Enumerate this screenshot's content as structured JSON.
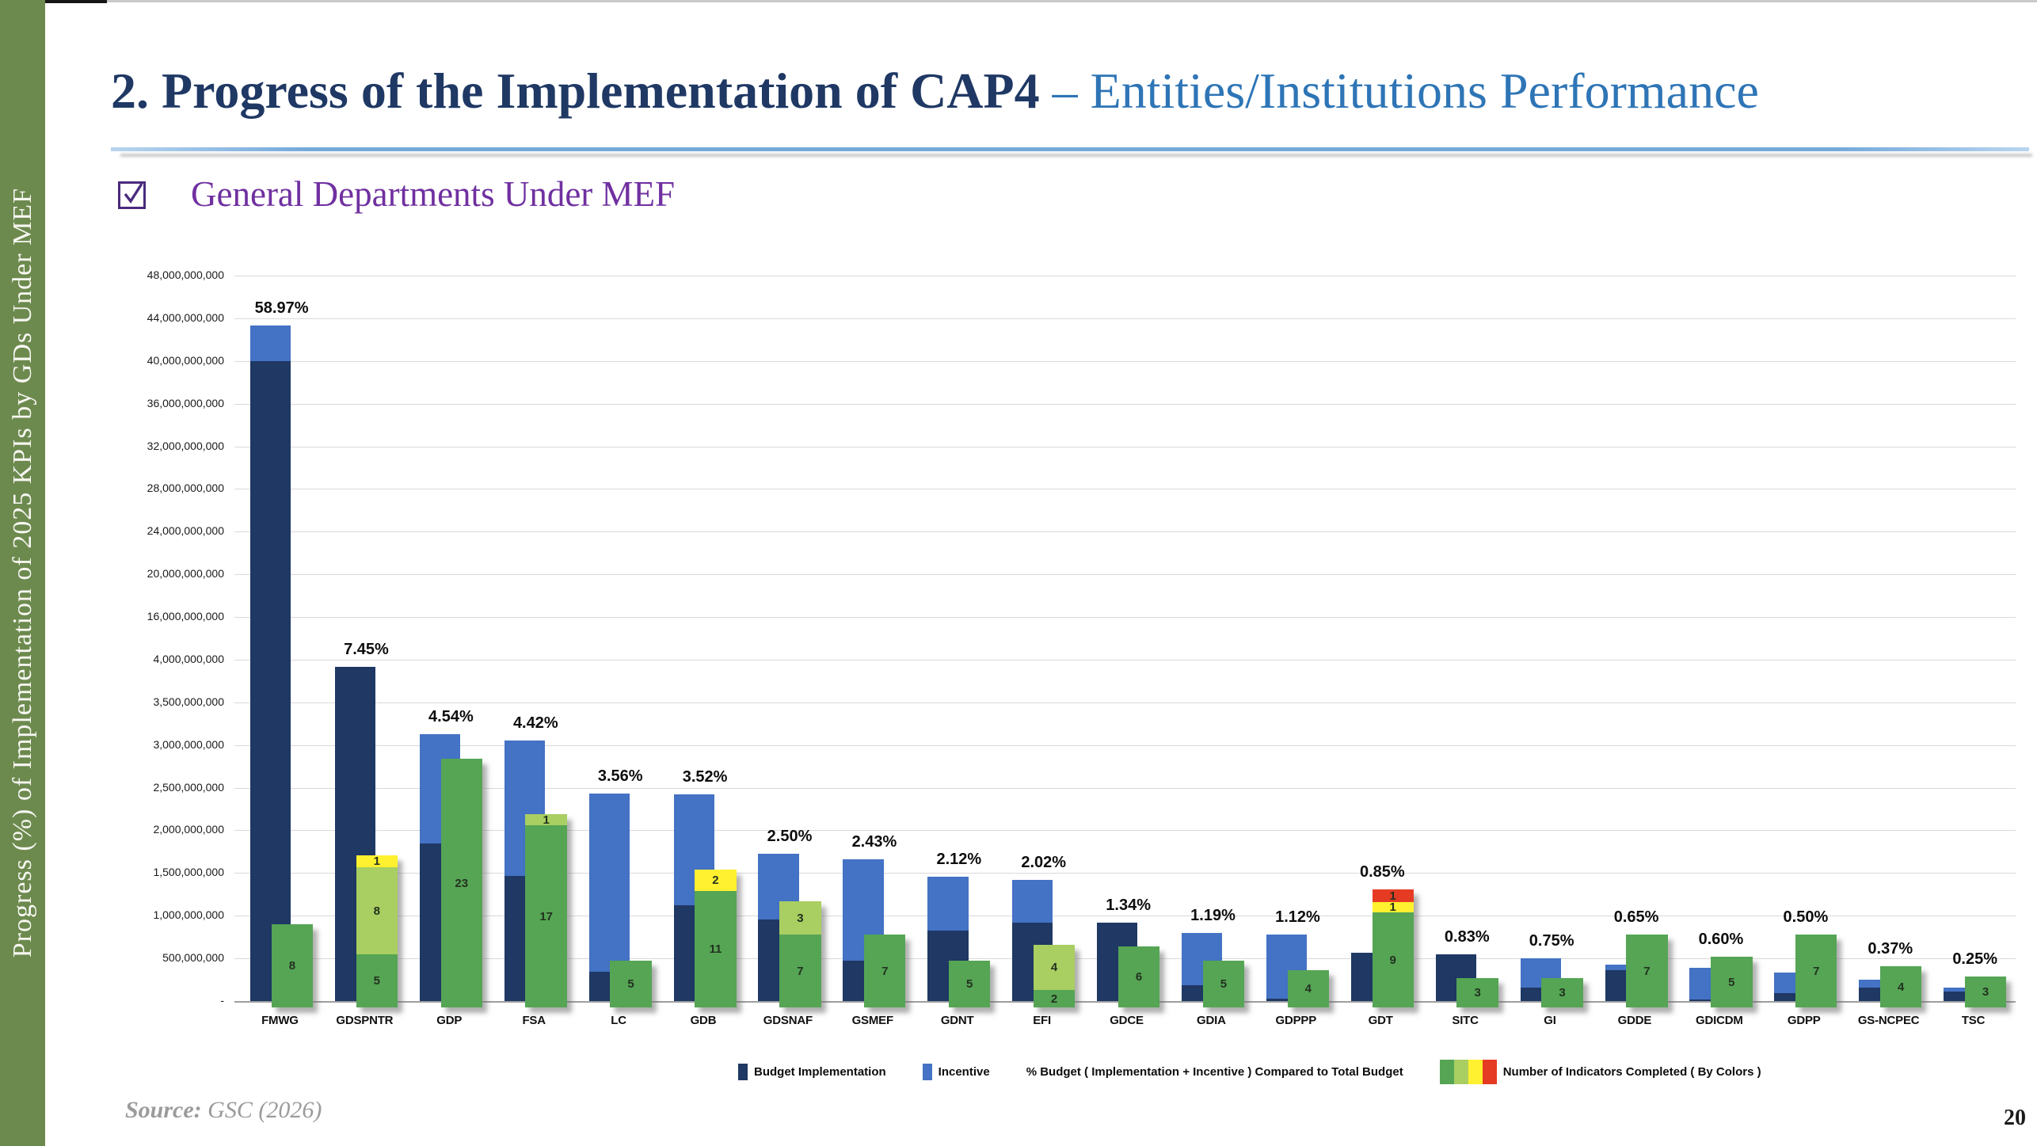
{
  "sidebar": {
    "text": "Progress (%) of Implementation of 2025 KPIs by GDs Under MEF"
  },
  "header": {
    "title_main": "2. Progress of the Implementation of CAP4 ",
    "title_accent": "– Entities/Institutions Performance"
  },
  "section": {
    "label": "General Departments Under MEF"
  },
  "footer": {
    "source_prefix": "Source:",
    "source_value": " GSC (2026)",
    "page_number": "20"
  },
  "chart_data": {
    "type": "bar",
    "title": "",
    "xlabel": "",
    "ylabel": "",
    "y_axis": {
      "broken": true,
      "tick_labels": [
        "48,000,000,000",
        "44,000,000,000",
        "40,000,000,000",
        "36,000,000,000",
        "32,000,000,000",
        "28,000,000,000",
        "24,000,000,000",
        "20,000,000,000",
        "16,000,000,000",
        "4,000,000,000",
        "3,500,000,000",
        "3,000,000,000",
        "2,500,000,000",
        "2,000,000,000",
        "1,500,000,000",
        "1,000,000,000",
        "500,000,000",
        "-"
      ],
      "tick_values_billions": [
        48,
        44,
        40,
        36,
        32,
        28,
        24,
        20,
        16,
        4,
        3.5,
        3,
        2.5,
        2,
        1.5,
        1,
        0.5,
        0
      ]
    },
    "colors": {
      "implementation": "#1F3864",
      "incentive": "#4472C4",
      "green": "#55A555",
      "light_green": "#A9CE61",
      "yellow": "#FFF12F",
      "red": "#E63B23"
    },
    "legend": [
      {
        "kind": "swatch",
        "color_key": "implementation",
        "label": "Budget Implementation"
      },
      {
        "kind": "swatch",
        "color_key": "incentive",
        "label": "Incentive"
      },
      {
        "kind": "text",
        "label": "% Budget ( Implementation + Incentive ) Compared to Total Budget"
      },
      {
        "kind": "multi_swatch",
        "color_keys": [
          "green",
          "light_green",
          "yellow",
          "red"
        ],
        "label": "Number of Indicators Completed ( By Colors )"
      }
    ],
    "categories": [
      {
        "name": "FMWG",
        "pct_label": "58.97%",
        "implementation_b": 40.0,
        "incentive_b": 3.35,
        "indicators": [
          {
            "color_key": "green",
            "count": 8,
            "height_b": 0.97
          }
        ]
      },
      {
        "name": "GDSPNTR",
        "pct_label": "7.45%",
        "implementation_b": 3.92,
        "incentive_b": 0,
        "indicators": [
          {
            "color_key": "green",
            "count": 5,
            "height_b": 0.62
          },
          {
            "color_key": "light_green",
            "count": 8,
            "height_b": 1.02
          },
          {
            "color_key": "yellow",
            "count": 1,
            "height_b": 0.14
          }
        ]
      },
      {
        "name": "GDP",
        "pct_label": "4.54%",
        "implementation_b": 1.85,
        "incentive_b": 1.28,
        "indicators": [
          {
            "color_key": "green",
            "count": 23,
            "height_b": 2.91
          }
        ]
      },
      {
        "name": "FSA",
        "pct_label": "4.42%",
        "implementation_b": 1.47,
        "incentive_b": 1.58,
        "indicators": [
          {
            "color_key": "green",
            "count": 17,
            "height_b": 2.13
          },
          {
            "color_key": "light_green",
            "count": 1,
            "height_b": 0.13
          }
        ]
      },
      {
        "name": "LC",
        "pct_label": "3.56%",
        "implementation_b": 0.34,
        "incentive_b": 2.09,
        "indicators": [
          {
            "color_key": "green",
            "count": 5,
            "height_b": 0.55
          }
        ]
      },
      {
        "name": "GDB",
        "pct_label": "3.52%",
        "implementation_b": 1.12,
        "incentive_b": 1.3,
        "indicators": [
          {
            "color_key": "green",
            "count": 11,
            "height_b": 1.36
          },
          {
            "color_key": "yellow",
            "count": 2,
            "height_b": 0.25
          }
        ]
      },
      {
        "name": "GDSNAF",
        "pct_label": "2.50%",
        "implementation_b": 0.96,
        "incentive_b": 0.77,
        "indicators": [
          {
            "color_key": "green",
            "count": 7,
            "height_b": 0.85
          },
          {
            "color_key": "light_green",
            "count": 3,
            "height_b": 0.39
          }
        ]
      },
      {
        "name": "GSMEF",
        "pct_label": "2.43%",
        "implementation_b": 0.47,
        "incentive_b": 1.19,
        "indicators": [
          {
            "color_key": "green",
            "count": 7,
            "height_b": 0.85
          }
        ]
      },
      {
        "name": "GDNT",
        "pct_label": "2.12%",
        "implementation_b": 0.83,
        "incentive_b": 0.63,
        "indicators": [
          {
            "color_key": "green",
            "count": 5,
            "height_b": 0.55
          }
        ]
      },
      {
        "name": "EFI",
        "pct_label": "2.02%",
        "implementation_b": 0.92,
        "incentive_b": 0.5,
        "indicators": [
          {
            "color_key": "green",
            "count": 2,
            "height_b": 0.2
          },
          {
            "color_key": "light_green",
            "count": 4,
            "height_b": 0.53
          }
        ]
      },
      {
        "name": "GDCE",
        "pct_label": "1.34%",
        "implementation_b": 0.92,
        "incentive_b": 0,
        "indicators": [
          {
            "color_key": "green",
            "count": 6,
            "height_b": 0.71
          }
        ]
      },
      {
        "name": "GDIA",
        "pct_label": "1.19%",
        "implementation_b": 0.19,
        "incentive_b": 0.61,
        "indicators": [
          {
            "color_key": "green",
            "count": 5,
            "height_b": 0.55
          }
        ]
      },
      {
        "name": "GDPPP",
        "pct_label": "1.12%",
        "implementation_b": 0.03,
        "incentive_b": 0.75,
        "indicators": [
          {
            "color_key": "green",
            "count": 4,
            "height_b": 0.44
          }
        ]
      },
      {
        "name": "GDT",
        "pct_label": "0.85%",
        "implementation_b": 0.57,
        "incentive_b": 0,
        "indicators": [
          {
            "color_key": "green",
            "count": 9,
            "height_b": 1.11
          },
          {
            "color_key": "yellow",
            "count": 1,
            "height_b": 0.12
          },
          {
            "color_key": "red",
            "count": 1,
            "height_b": 0.15
          }
        ]
      },
      {
        "name": "SITC",
        "pct_label": "0.83%",
        "implementation_b": 0.55,
        "incentive_b": 0,
        "indicators": [
          {
            "color_key": "green",
            "count": 3,
            "height_b": 0.34
          }
        ]
      },
      {
        "name": "GI",
        "pct_label": "0.75%",
        "implementation_b": 0.16,
        "incentive_b": 0.34,
        "indicators": [
          {
            "color_key": "green",
            "count": 3,
            "height_b": 0.34
          }
        ]
      },
      {
        "name": "GDDE",
        "pct_label": "0.65%",
        "implementation_b": 0.36,
        "incentive_b": 0.07,
        "indicators": [
          {
            "color_key": "green",
            "count": 7,
            "height_b": 0.85
          }
        ]
      },
      {
        "name": "GDICDM",
        "pct_label": "0.60%",
        "implementation_b": 0.02,
        "incentive_b": 0.37,
        "indicators": [
          {
            "color_key": "green",
            "count": 5,
            "height_b": 0.59
          }
        ]
      },
      {
        "name": "GDPP",
        "pct_label": "0.50%",
        "implementation_b": 0.09,
        "incentive_b": 0.24,
        "indicators": [
          {
            "color_key": "green",
            "count": 7,
            "height_b": 0.85
          }
        ]
      },
      {
        "name": "GS-NCPEC",
        "pct_label": "0.37%",
        "implementation_b": 0.16,
        "incentive_b": 0.09,
        "indicators": [
          {
            "color_key": "green",
            "count": 4,
            "height_b": 0.48
          }
        ]
      },
      {
        "name": "TSC",
        "pct_label": "0.25%",
        "implementation_b": 0.11,
        "incentive_b": 0.05,
        "indicators": [
          {
            "color_key": "green",
            "count": 3,
            "height_b": 0.36
          }
        ]
      }
    ]
  }
}
